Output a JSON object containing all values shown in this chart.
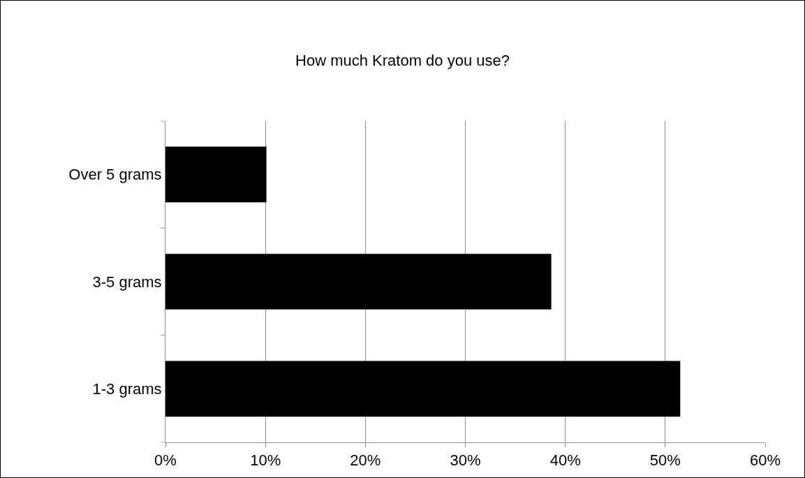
{
  "chart_data": {
    "type": "bar",
    "orientation": "horizontal",
    "title": "How much Kratom do you use?",
    "categories": [
      "Over 5 grams",
      "3-5 grams",
      "1-3 grams"
    ],
    "values": [
      10.1,
      38.6,
      51.5
    ],
    "color": "#000000",
    "xlim": [
      0,
      60
    ],
    "xticks": [
      {
        "value": 0,
        "label": "0%"
      },
      {
        "value": 10,
        "label": "10%"
      },
      {
        "value": 20,
        "label": "20%"
      },
      {
        "value": 30,
        "label": "30%"
      },
      {
        "value": 40,
        "label": "40%"
      },
      {
        "value": 50,
        "label": "50%"
      },
      {
        "value": 60,
        "label": "60%"
      }
    ],
    "grid": "x",
    "legend": false
  }
}
